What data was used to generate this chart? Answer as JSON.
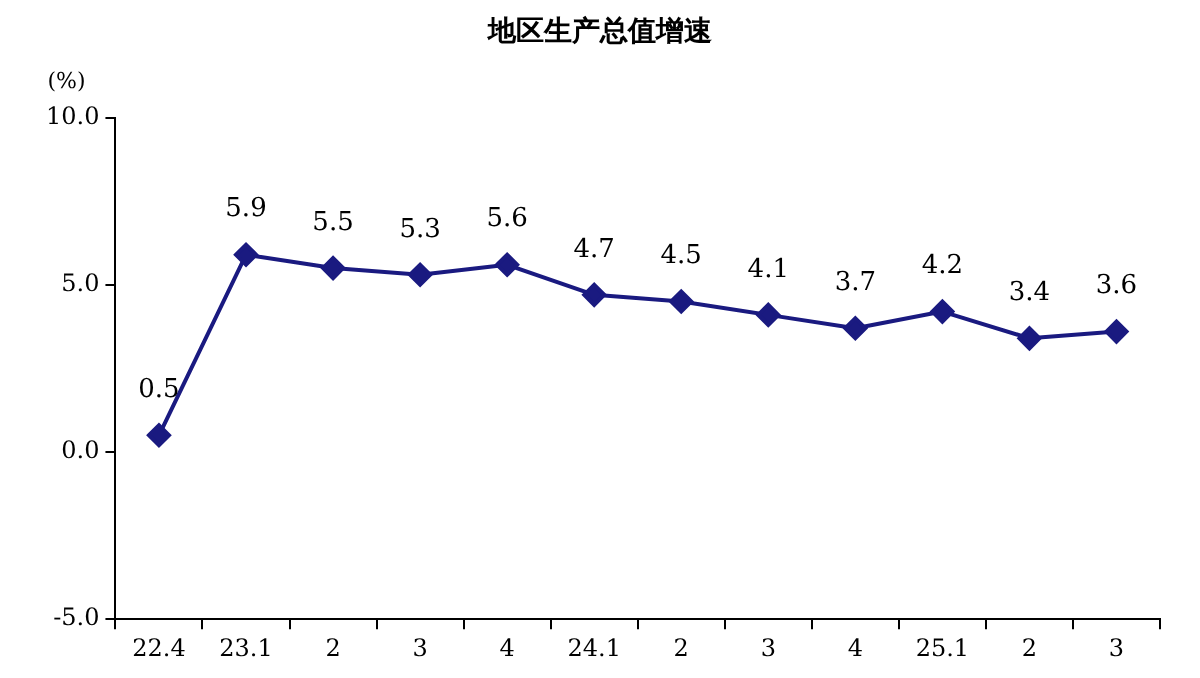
{
  "chart_data": {
    "type": "line",
    "title": "地区生产总值增速",
    "ylabel": "(%)",
    "categories": [
      "22.4",
      "23.1",
      "2",
      "3",
      "4",
      "24.1",
      "2",
      "3",
      "4",
      "25.1",
      "2",
      "3"
    ],
    "series": [
      {
        "color": "#1a1a80",
        "values": [
          0.5,
          5.9,
          5.5,
          5.3,
          5.6,
          4.7,
          4.5,
          4.1,
          3.7,
          4.2,
          3.4,
          3.6
        ]
      }
    ],
    "ylim": [
      -5,
      10
    ],
    "yticks": [
      {
        "value": -5,
        "label": "-5.0"
      },
      {
        "value": 0,
        "label": "0.0"
      },
      {
        "value": 5,
        "label": "5.0"
      },
      {
        "value": 10,
        "label": "10.0"
      }
    ],
    "grid": false,
    "legend": false,
    "marker": "diamond",
    "line_style": "solid",
    "data_labels": true
  }
}
